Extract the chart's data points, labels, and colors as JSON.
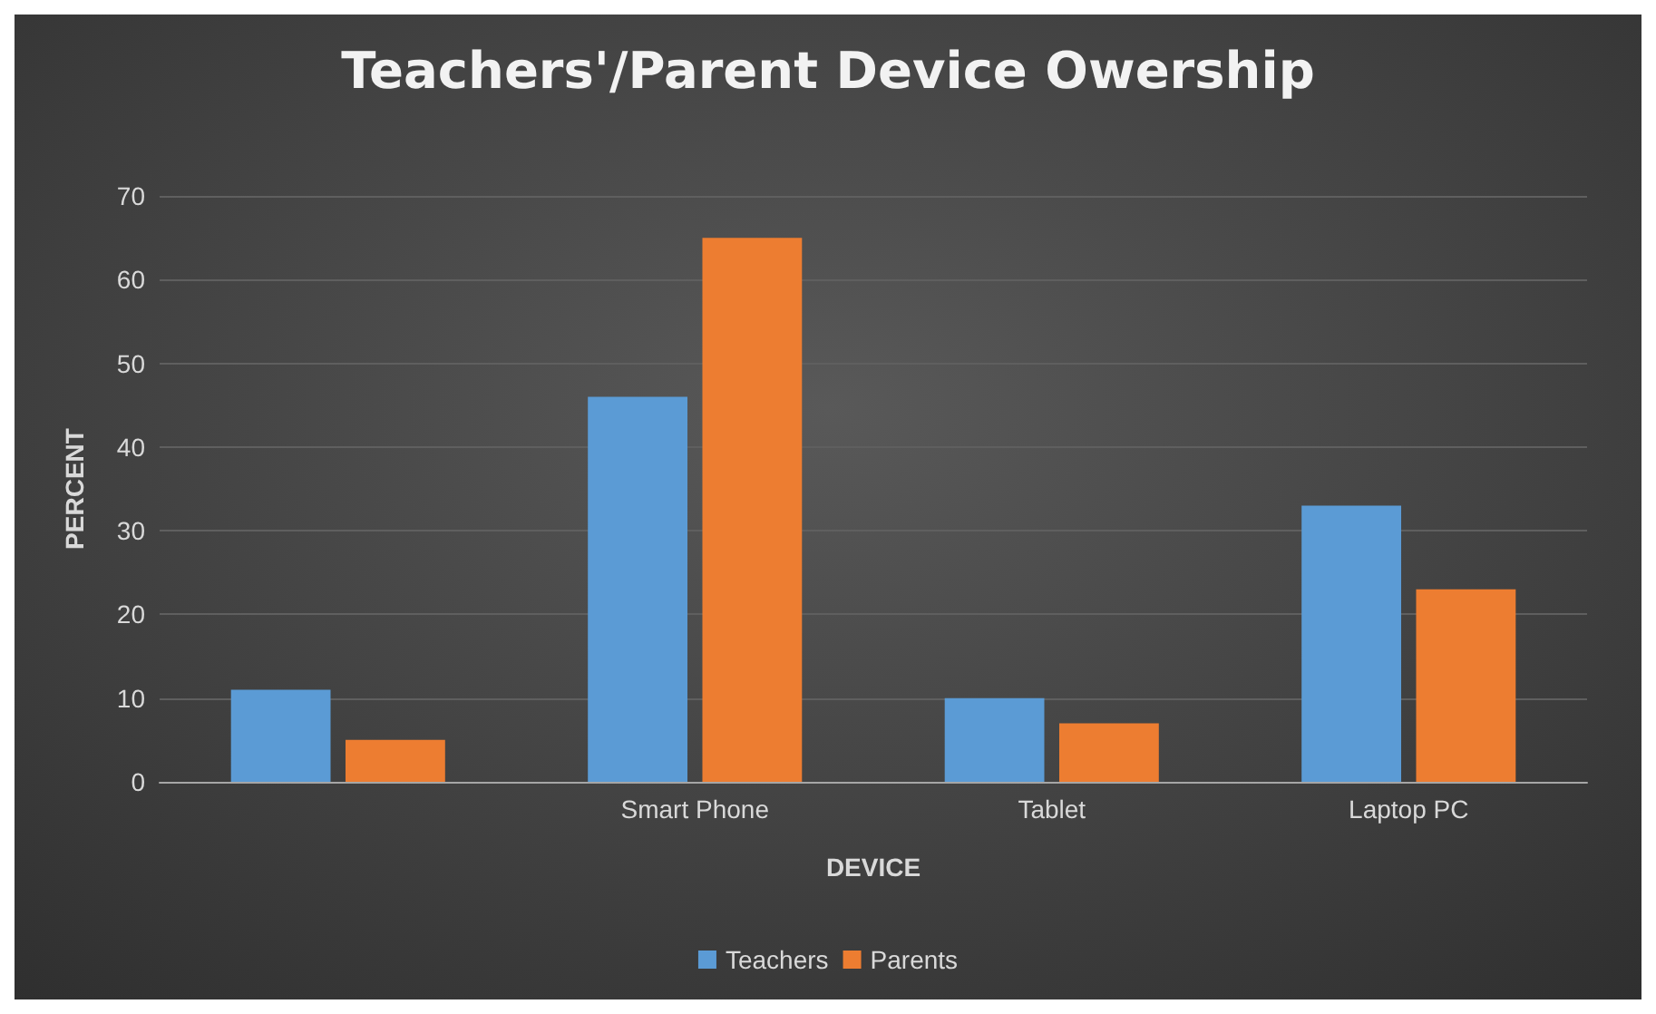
{
  "chart_data": {
    "type": "bar",
    "title": "Teachers'/Parent Device Owership",
    "xlabel": "DEVICE",
    "ylabel": "PERCENT",
    "categories": [
      null,
      "Smart Phone",
      "Tablet",
      "Laptop PC"
    ],
    "series": [
      {
        "name": "Teachers",
        "color": "#5b9bd5",
        "values": [
          11,
          46,
          10,
          33
        ]
      },
      {
        "name": "Parents",
        "color": "#ed7d31",
        "values": [
          5,
          65,
          7,
          23
        ]
      }
    ],
    "ylim": [
      0,
      70
    ],
    "yticks": [
      0,
      10,
      20,
      30,
      40,
      50,
      60,
      70
    ],
    "grid": "y",
    "legend": "bottom"
  }
}
